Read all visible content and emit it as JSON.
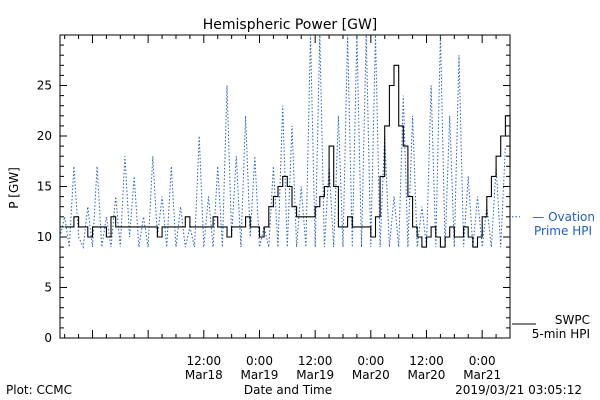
{
  "chart_data": {
    "type": "line",
    "title": "Hemispheric Power [GW]",
    "ylabel": "P [GW]",
    "xlabel": "Date and Time",
    "ylim": [
      0,
      30
    ],
    "yticks": [
      0,
      5,
      10,
      15,
      20,
      25
    ],
    "xlim": [
      -19,
      78
    ],
    "xticks": [
      {
        "x": 12,
        "line1": "12:00",
        "line2": "Mar18"
      },
      {
        "x": 24,
        "line1": "0:00",
        "line2": "Mar19"
      },
      {
        "x": 36,
        "line1": "12:00",
        "line2": "Mar19"
      },
      {
        "x": 48,
        "line1": "0:00",
        "line2": "Mar20"
      },
      {
        "x": 60,
        "line1": "12:00",
        "line2": "Mar20"
      },
      {
        "x": 72,
        "line1": "0:00",
        "line2": "Mar21"
      }
    ],
    "x_unit": "hours from 2019-03-18 00:00",
    "grid": false,
    "legend_position": "right",
    "colors": {
      "ovation": "#1f5fbf",
      "swpc": "#000000",
      "frame": "#000000"
    },
    "series": [
      {
        "name": "Ovation Prime HPI",
        "label_lines": [
          "— Ovation",
          "Prime HPI"
        ],
        "style": "dotted",
        "points": [
          [
            -19,
            10
          ],
          [
            -18,
            12
          ],
          [
            -17,
            9
          ],
          [
            -16,
            17
          ],
          [
            -15,
            10
          ],
          [
            -14,
            9
          ],
          [
            -13,
            13
          ],
          [
            -12,
            9
          ],
          [
            -11,
            17
          ],
          [
            -10,
            9
          ],
          [
            -9,
            12
          ],
          [
            -8,
            9
          ],
          [
            -7,
            14
          ],
          [
            -6,
            9
          ],
          [
            -5,
            18
          ],
          [
            -4,
            10
          ],
          [
            -3,
            16
          ],
          [
            -2,
            9
          ],
          [
            -1,
            12
          ],
          [
            0,
            9
          ],
          [
            1,
            18
          ],
          [
            2,
            10
          ],
          [
            3,
            14
          ],
          [
            4,
            9
          ],
          [
            5,
            17
          ],
          [
            6,
            9
          ],
          [
            7,
            13
          ],
          [
            8,
            9
          ],
          [
            9,
            11
          ],
          [
            10,
            9
          ],
          [
            11,
            20
          ],
          [
            12,
            9
          ],
          [
            13,
            14
          ],
          [
            14,
            9
          ],
          [
            15,
            17
          ],
          [
            16,
            9
          ],
          [
            17,
            25
          ],
          [
            18,
            10
          ],
          [
            19,
            18
          ],
          [
            20,
            9
          ],
          [
            21,
            22
          ],
          [
            22,
            10
          ],
          [
            23,
            18
          ],
          [
            24,
            9
          ],
          [
            25,
            11
          ],
          [
            26,
            9
          ],
          [
            27,
            17
          ],
          [
            28,
            9
          ],
          [
            29,
            23
          ],
          [
            30,
            9
          ],
          [
            31,
            21
          ],
          [
            32,
            9
          ],
          [
            33,
            15
          ],
          [
            34,
            9
          ],
          [
            35,
            30
          ],
          [
            36,
            9
          ],
          [
            37,
            30
          ],
          [
            38,
            9
          ],
          [
            39,
            17
          ],
          [
            40,
            9
          ],
          [
            41,
            22
          ],
          [
            42,
            9
          ],
          [
            43,
            30
          ],
          [
            44,
            9
          ],
          [
            45,
            30
          ],
          [
            46,
            9
          ],
          [
            47,
            30
          ],
          [
            48,
            9
          ],
          [
            49,
            30
          ],
          [
            50,
            9
          ],
          [
            51,
            20
          ],
          [
            52,
            9
          ],
          [
            53,
            14
          ],
          [
            54,
            9
          ],
          [
            55,
            24
          ],
          [
            56,
            9
          ],
          [
            57,
            22
          ],
          [
            58,
            9
          ],
          [
            59,
            13
          ],
          [
            60,
            9
          ],
          [
            61,
            25
          ],
          [
            62,
            9
          ],
          [
            63,
            30
          ],
          [
            64,
            9
          ],
          [
            65,
            22
          ],
          [
            66,
            9
          ],
          [
            67,
            28
          ],
          [
            68,
            9
          ],
          [
            69,
            16
          ],
          [
            70,
            9
          ],
          [
            71,
            14
          ],
          [
            72,
            9
          ],
          [
            73,
            13
          ],
          [
            74,
            9
          ],
          [
            75,
            17
          ],
          [
            76,
            9
          ],
          [
            77,
            19
          ]
        ]
      },
      {
        "name": "SWPC 5-min HPI",
        "label_lines": [
          "SWPC",
          "5-min HPI"
        ],
        "style": "solid",
        "points": [
          [
            -18,
            11
          ],
          [
            -17,
            11
          ],
          [
            -16,
            12
          ],
          [
            -15,
            11
          ],
          [
            -14,
            11
          ],
          [
            -13,
            10
          ],
          [
            -12,
            11
          ],
          [
            -11,
            11
          ],
          [
            -10,
            11
          ],
          [
            -9,
            10
          ],
          [
            -8,
            12
          ],
          [
            -7,
            11
          ],
          [
            -6,
            11
          ],
          [
            -5,
            11
          ],
          [
            -4,
            11
          ],
          [
            -3,
            11
          ],
          [
            -2,
            11
          ],
          [
            -1,
            11
          ],
          [
            0,
            11
          ],
          [
            1,
            11
          ],
          [
            2,
            10
          ],
          [
            3,
            11
          ],
          [
            4,
            11
          ],
          [
            5,
            11
          ],
          [
            6,
            11
          ],
          [
            7,
            11
          ],
          [
            8,
            12
          ],
          [
            9,
            11
          ],
          [
            10,
            11
          ],
          [
            11,
            11
          ],
          [
            12,
            11
          ],
          [
            13,
            11
          ],
          [
            14,
            12
          ],
          [
            15,
            11
          ],
          [
            16,
            11
          ],
          [
            17,
            10
          ],
          [
            18,
            11
          ],
          [
            19,
            11
          ],
          [
            20,
            11
          ],
          [
            21,
            12
          ],
          [
            22,
            11
          ],
          [
            23,
            11
          ],
          [
            24,
            10
          ],
          [
            25,
            11
          ],
          [
            26,
            13
          ],
          [
            27,
            14
          ],
          [
            28,
            15
          ],
          [
            29,
            16
          ],
          [
            30,
            15
          ],
          [
            31,
            13
          ],
          [
            32,
            12
          ],
          [
            33,
            12
          ],
          [
            34,
            12
          ],
          [
            35,
            12
          ],
          [
            36,
            13
          ],
          [
            37,
            14
          ],
          [
            38,
            15
          ],
          [
            39,
            19
          ],
          [
            40,
            15
          ],
          [
            41,
            11
          ],
          [
            42,
            11
          ],
          [
            43,
            12
          ],
          [
            44,
            11
          ],
          [
            45,
            11
          ],
          [
            46,
            11
          ],
          [
            47,
            11
          ],
          [
            48,
            10
          ],
          [
            49,
            12
          ],
          [
            50,
            16
          ],
          [
            51,
            21
          ],
          [
            52,
            25
          ],
          [
            53,
            27
          ],
          [
            54,
            21
          ],
          [
            55,
            19
          ],
          [
            56,
            14
          ],
          [
            57,
            11
          ],
          [
            58,
            10
          ],
          [
            59,
            9
          ],
          [
            60,
            10
          ],
          [
            61,
            11
          ],
          [
            62,
            10
          ],
          [
            63,
            9
          ],
          [
            64,
            10
          ],
          [
            65,
            11
          ],
          [
            66,
            10
          ],
          [
            67,
            10
          ],
          [
            68,
            11
          ],
          [
            69,
            10
          ],
          [
            70,
            9
          ],
          [
            71,
            10
          ],
          [
            72,
            12
          ],
          [
            73,
            14
          ],
          [
            74,
            16
          ],
          [
            75,
            18
          ],
          [
            76,
            20
          ],
          [
            77,
            22
          ],
          [
            78,
            17
          ]
        ]
      }
    ],
    "footer": {
      "left": "Plot: CCMC",
      "right": "2019/03/21 03:05:12"
    }
  }
}
